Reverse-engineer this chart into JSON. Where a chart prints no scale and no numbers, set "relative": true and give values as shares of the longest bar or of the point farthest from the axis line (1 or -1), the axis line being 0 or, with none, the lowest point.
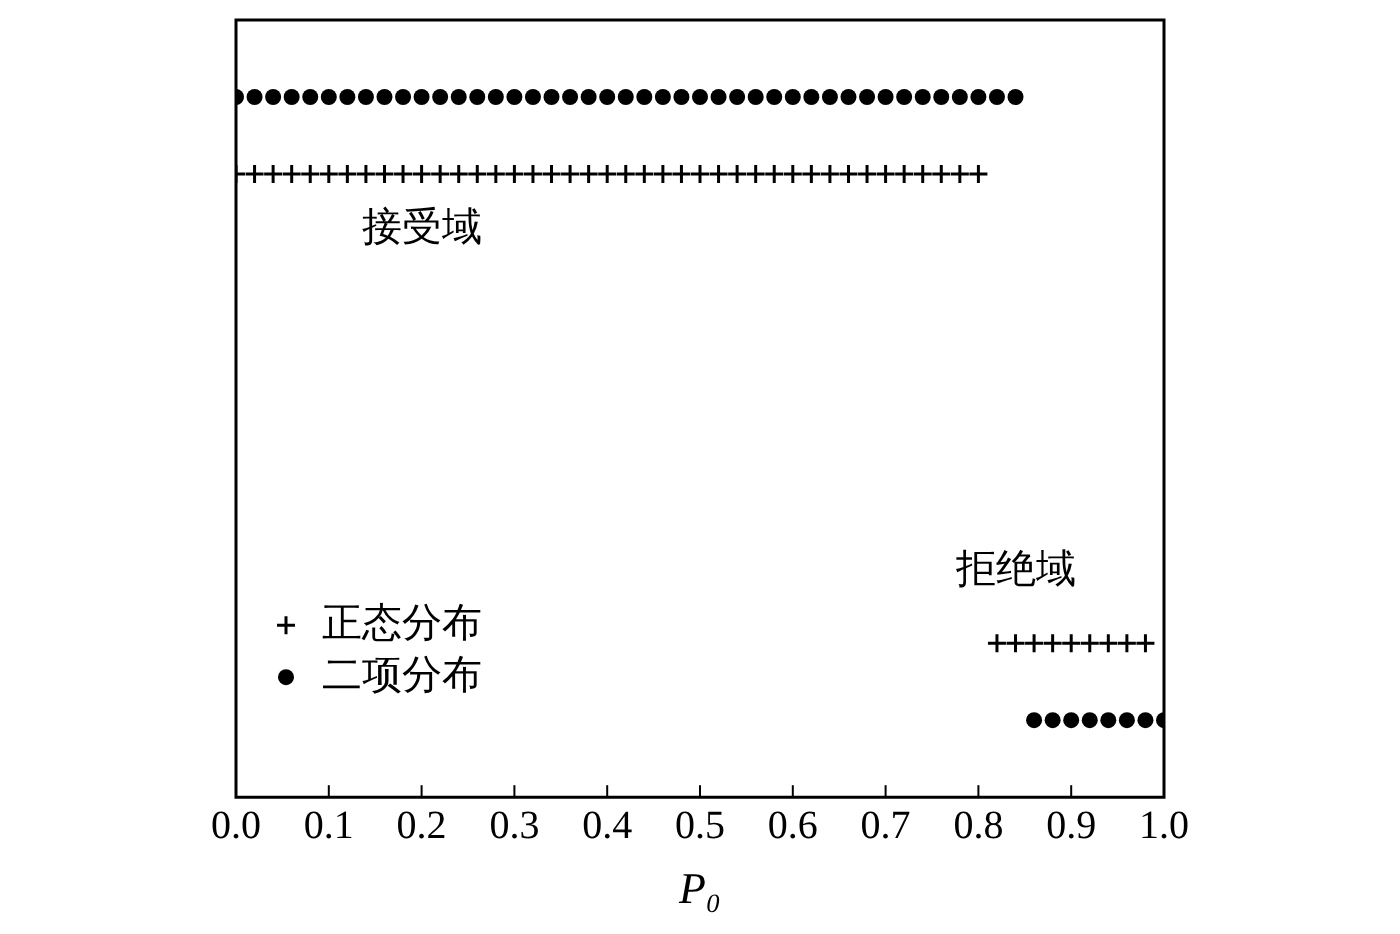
{
  "chart_data": {
    "type": "scatter",
    "xlabel": "P₀",
    "relative": true,
    "xlim": [
      0,
      1
    ],
    "xticks": [
      {
        "value": 0,
        "label": "0.0"
      },
      0.1,
      0.2,
      0.3,
      0.4,
      0.5,
      0.6,
      0.7,
      0.8,
      0.9,
      {
        "value": 1,
        "label": "1.0"
      }
    ],
    "legend": "bottom left",
    "grid": false,
    "series": [
      {
        "name": "正态分布",
        "color": "#000000",
        "marker": "cross",
        "x": [
          0,
          0.02,
          0.04,
          0.06,
          0.08,
          0.1,
          0.12,
          0.14,
          0.16,
          0.18,
          0.2,
          0.22,
          0.24,
          0.26,
          0.28,
          0.3,
          0.32,
          0.34,
          0.36,
          0.38,
          0.4,
          0.42,
          0.44,
          0.46,
          0.48,
          0.5,
          0.52,
          0.54,
          0.56,
          0.58,
          0.6,
          0.62,
          0.64,
          0.66,
          0.68,
          0.7,
          0.72,
          0.74,
          0.76,
          0.78,
          0.8,
          0.82,
          0.84,
          0.86,
          0.88,
          0.9,
          0.92,
          0.94,
          0.96,
          0.98
        ],
        "values": [
          0.89,
          0.89,
          0.89,
          0.89,
          0.89,
          0.89,
          0.89,
          0.89,
          0.89,
          0.89,
          0.89,
          0.89,
          0.89,
          0.89,
          0.89,
          0.89,
          0.89,
          0.89,
          0.89,
          0.89,
          0.89,
          0.89,
          0.89,
          0.89,
          0.89,
          0.89,
          0.89,
          0.89,
          0.89,
          0.89,
          0.89,
          0.89,
          0.89,
          0.89,
          0.89,
          0.89,
          0.89,
          0.89,
          0.89,
          0.89,
          0.89,
          0.22,
          0.22,
          0.22,
          0.22,
          0.22,
          0.22,
          0.22,
          0.22,
          0.22
        ]
      },
      {
        "name": "二项分布",
        "color": "#000000",
        "marker": "circle",
        "x": [
          0,
          0.02,
          0.04,
          0.06,
          0.08,
          0.1,
          0.12,
          0.14,
          0.16,
          0.18,
          0.2,
          0.22,
          0.24,
          0.26,
          0.28,
          0.3,
          0.32,
          0.34,
          0.36,
          0.38,
          0.4,
          0.42,
          0.44,
          0.46,
          0.48,
          0.5,
          0.52,
          0.54,
          0.56,
          0.58,
          0.6,
          0.62,
          0.64,
          0.66,
          0.68,
          0.7,
          0.72,
          0.74,
          0.76,
          0.78,
          0.8,
          0.82,
          0.84,
          0.86,
          0.88,
          0.9,
          0.92,
          0.94,
          0.96,
          0.98,
          1
        ],
        "values": [
          1,
          1,
          1,
          1,
          1,
          1,
          1,
          1,
          1,
          1,
          1,
          1,
          1,
          1,
          1,
          1,
          1,
          1,
          1,
          1,
          1,
          1,
          1,
          1,
          1,
          1,
          1,
          1,
          1,
          1,
          1,
          1,
          1,
          1,
          1,
          1,
          1,
          1,
          1,
          1,
          1,
          1,
          1,
          0.11,
          0.11,
          0.11,
          0.11,
          0.11,
          0.11,
          0.11,
          0.11
        ]
      }
    ],
    "annotations": [
      "接受域",
      "拒绝域"
    ]
  }
}
